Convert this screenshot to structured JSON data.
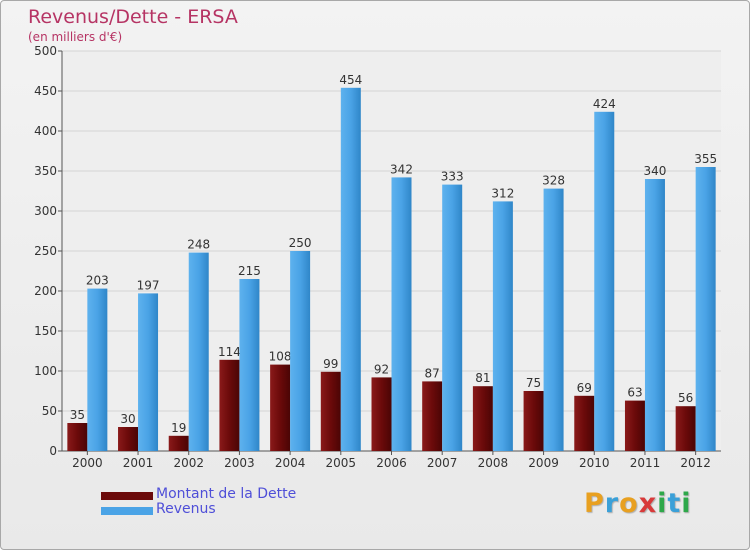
{
  "header": {
    "title": "Revenus/Dette - ERSA",
    "subtitle": "(en milliers d'€)"
  },
  "colors": {
    "dette": "#6b0a0a",
    "revenus": "#4aa3e6",
    "title": "#b63464",
    "legend_text": "#4f4fd8",
    "grid": "#d4d4d4"
  },
  "legend": {
    "dette_label": "Montant de la Dette",
    "revenus_label": "Revenus"
  },
  "logo": {
    "letters": [
      "P",
      "r",
      "o",
      "x",
      "i",
      "t",
      "i"
    ],
    "letter_colors": [
      "#e8a020",
      "#3aa0d8",
      "#e8a020",
      "#d83a3a",
      "#2ea84a",
      "#3aa0d8",
      "#2ea84a"
    ]
  },
  "chart_data": {
    "type": "bar",
    "title": "Revenus/Dette - ERSA",
    "subtitle": "(en milliers d'€)",
    "categories": [
      "2000",
      "2001",
      "2002",
      "2003",
      "2004",
      "2005",
      "2006",
      "2007",
      "2008",
      "2009",
      "2010",
      "2011",
      "2012"
    ],
    "series": [
      {
        "name": "Montant de la Dette",
        "values": [
          35,
          30,
          19,
          114,
          108,
          99,
          92,
          87,
          81,
          75,
          69,
          63,
          56
        ]
      },
      {
        "name": "Revenus",
        "values": [
          203,
          197,
          248,
          215,
          250,
          454,
          342,
          333,
          312,
          328,
          424,
          340,
          355
        ]
      }
    ],
    "ylim": [
      0,
      500
    ],
    "yticks": [
      0,
      50,
      100,
      150,
      200,
      250,
      300,
      350,
      400,
      450,
      500
    ],
    "grid": true,
    "legend": "bottom-left",
    "data_labels": true
  }
}
